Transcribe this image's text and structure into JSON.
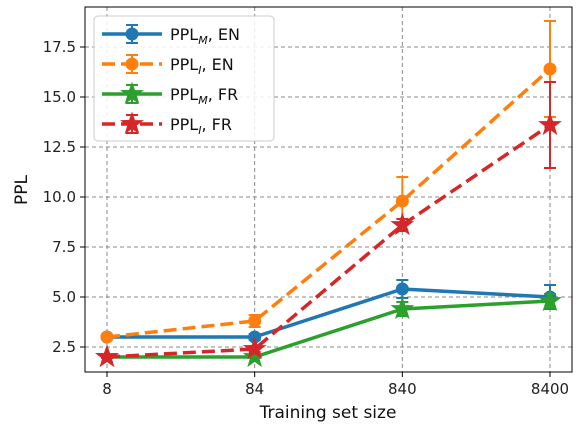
{
  "chart_data": {
    "type": "line",
    "xlabel": "Training set size",
    "ylabel": "PPL",
    "categories": [
      "8",
      "84",
      "840",
      "8400"
    ],
    "ylim": [
      1.25,
      19.5
    ],
    "yticks": [
      "2.5",
      "5.0",
      "7.5",
      "10.0",
      "12.5",
      "15.0",
      "17.5"
    ],
    "grid": true,
    "legend_position": "top-left",
    "series": [
      {
        "name_main": "PPL",
        "name_sub": "M",
        "name_suffix": ", EN",
        "color": "#1f77b4",
        "dash": "solid",
        "marker": "circle",
        "values": [
          3.0,
          3.0,
          5.4,
          5.0
        ],
        "errors": [
          0.05,
          0.15,
          0.45,
          0.6
        ]
      },
      {
        "name_main": "PPL",
        "name_sub": "I",
        "name_suffix": ", EN",
        "color": "#ff7f0e",
        "dash": "dashed",
        "marker": "circle",
        "values": [
          3.0,
          3.8,
          9.8,
          16.4
        ],
        "errors": [
          0.05,
          0.3,
          1.2,
          2.4
        ]
      },
      {
        "name_main": "PPL",
        "name_sub": "M",
        "name_suffix": ", FR",
        "color": "#2ca02c",
        "dash": "solid",
        "marker": "star",
        "values": [
          2.0,
          2.0,
          4.4,
          4.8
        ],
        "errors": [
          0.05,
          0.05,
          0.35,
          0.35
        ]
      },
      {
        "name_main": "PPL",
        "name_sub": "I",
        "name_suffix": ", FR",
        "color": "#d62728",
        "dash": "dashed",
        "marker": "star",
        "values": [
          2.0,
          2.4,
          8.6,
          13.6
        ],
        "errors": [
          0.05,
          0.15,
          0.3,
          2.15
        ]
      }
    ]
  }
}
